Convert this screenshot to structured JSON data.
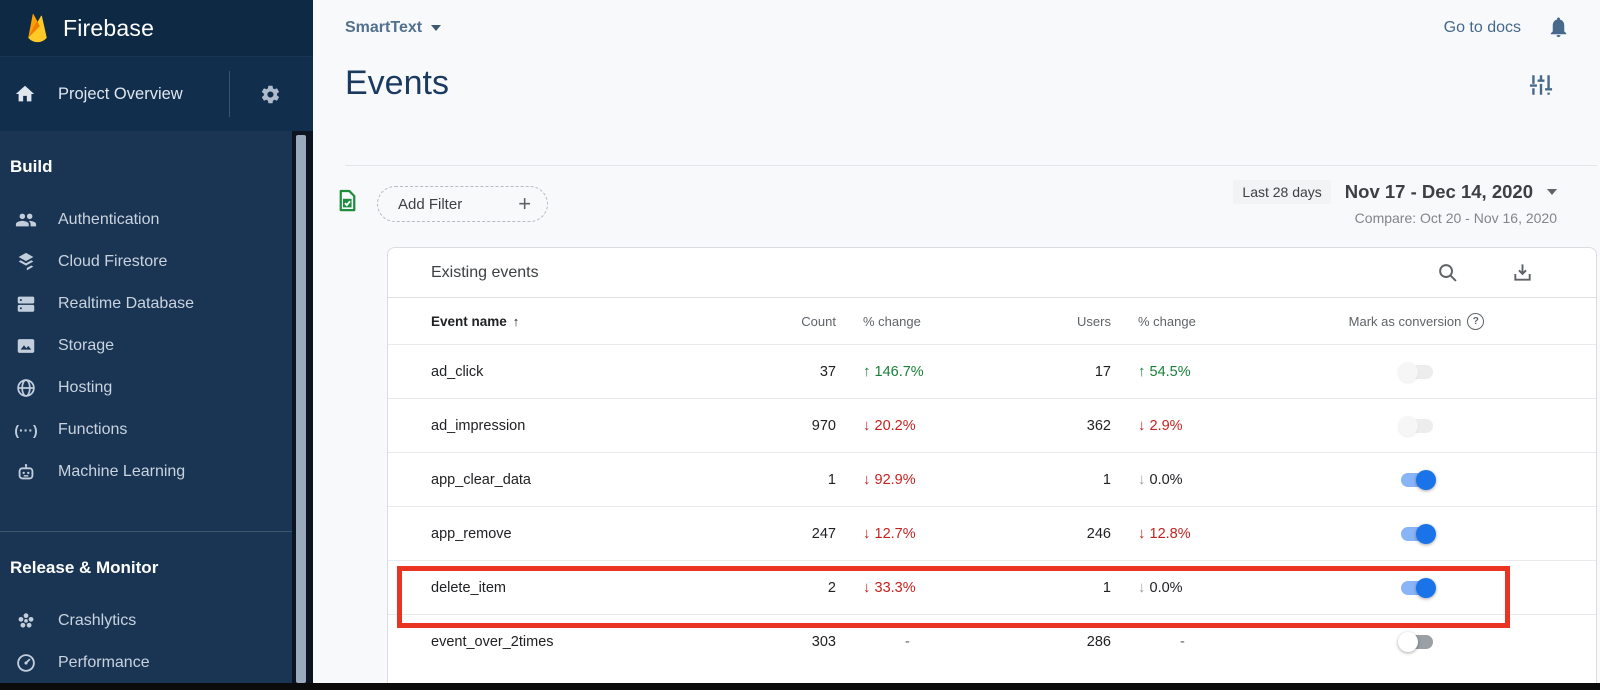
{
  "brand": {
    "name": "Firebase"
  },
  "sidebar": {
    "project_overview": "Project Overview",
    "sections": [
      {
        "label": "Build",
        "items": [
          {
            "label": "Authentication",
            "icon": "users-icon"
          },
          {
            "label": "Cloud Firestore",
            "icon": "firestore-icon"
          },
          {
            "label": "Realtime Database",
            "icon": "database-icon"
          },
          {
            "label": "Storage",
            "icon": "storage-icon"
          },
          {
            "label": "Hosting",
            "icon": "hosting-icon"
          },
          {
            "label": "Functions",
            "icon": "functions-icon"
          },
          {
            "label": "Machine Learning",
            "icon": "ml-icon"
          }
        ]
      },
      {
        "label": "Release & Monitor",
        "items": [
          {
            "label": "Crashlytics",
            "icon": "crashlytics-icon"
          },
          {
            "label": "Performance",
            "icon": "performance-icon"
          }
        ]
      }
    ]
  },
  "topbar": {
    "project_selector": "SmartText",
    "go_to_docs": "Go to docs"
  },
  "page": {
    "title": "Events"
  },
  "filter_bar": {
    "add_filter_label": "Add Filter",
    "plus": "+",
    "date_badge": "Last 28 days",
    "date_range": "Nov 17 - Dec 14, 2020",
    "compare": "Compare: Oct 20 - Nov 16, 2020"
  },
  "table": {
    "title": "Existing events",
    "columns": {
      "event_name": "Event name",
      "count": "Count",
      "count_change": "% change",
      "users": "Users",
      "users_change": "% change",
      "conversion": "Mark as conversion"
    },
    "rows": [
      {
        "name": "ad_click",
        "count": "37",
        "count_change": {
          "dir": "up",
          "text": "146.7%",
          "tone": "positive"
        },
        "users": "17",
        "users_change": {
          "dir": "up",
          "text": "54.5%",
          "tone": "positive"
        },
        "toggle": "disabled_off",
        "highlight": false
      },
      {
        "name": "ad_impression",
        "count": "970",
        "count_change": {
          "dir": "down",
          "text": "20.2%",
          "tone": "negative"
        },
        "users": "362",
        "users_change": {
          "dir": "down",
          "text": "2.9%",
          "tone": "negative"
        },
        "toggle": "disabled_off",
        "highlight": false
      },
      {
        "name": "app_clear_data",
        "count": "1",
        "count_change": {
          "dir": "down",
          "text": "92.9%",
          "tone": "negative"
        },
        "users": "1",
        "users_change": {
          "dir": "down",
          "text": "0.0%",
          "tone": "neutral"
        },
        "toggle": "on",
        "highlight": false
      },
      {
        "name": "app_remove",
        "count": "247",
        "count_change": {
          "dir": "down",
          "text": "12.7%",
          "tone": "negative"
        },
        "users": "246",
        "users_change": {
          "dir": "down",
          "text": "12.8%",
          "tone": "negative"
        },
        "toggle": "on",
        "highlight": false
      },
      {
        "name": "delete_item",
        "count": "2",
        "count_change": {
          "dir": "down",
          "text": "33.3%",
          "tone": "negative"
        },
        "users": "1",
        "users_change": {
          "dir": "down",
          "text": "0.0%",
          "tone": "neutral"
        },
        "toggle": "on",
        "highlight": true
      },
      {
        "name": "event_over_2times",
        "count": "303",
        "count_change": {
          "dir": null,
          "text": "-",
          "tone": "none"
        },
        "users": "286",
        "users_change": {
          "dir": null,
          "text": "-",
          "tone": "none"
        },
        "toggle": "off",
        "highlight": false
      }
    ]
  },
  "colors": {
    "positive": "#188038",
    "negative": "#c5221f",
    "toggle_on": "#1a73e8",
    "highlight_red": "#ea3323",
    "sidebar_bg": "#1a3553",
    "link_blue": "#47698c"
  }
}
